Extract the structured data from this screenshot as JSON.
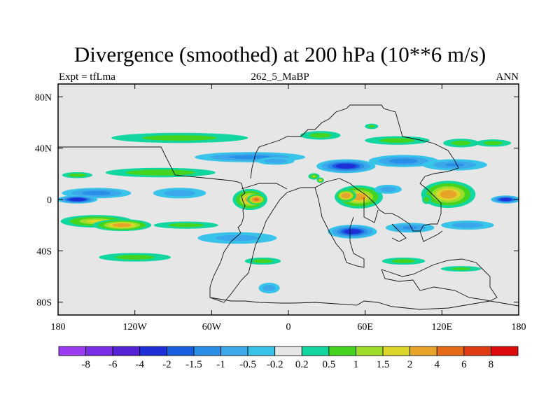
{
  "chart_data": {
    "type": "heatmap",
    "title": "Divergence (smoothed) at 200 hPa (10**6 m/s)",
    "left_label": "Expt = tfLma",
    "center_label": "262_5_MaBP",
    "right_label": "ANN",
    "xlabel": "",
    "ylabel": "",
    "xlim": [
      -180,
      180
    ],
    "ylim": [
      -90,
      90
    ],
    "x_ticks": [
      {
        "value": -180,
        "label": "180"
      },
      {
        "value": -120,
        "label": "120W"
      },
      {
        "value": -60,
        "label": "60W"
      },
      {
        "value": 0,
        "label": "0"
      },
      {
        "value": 60,
        "label": "60E"
      },
      {
        "value": 120,
        "label": "120E"
      },
      {
        "value": 180,
        "label": "180"
      }
    ],
    "y_ticks": [
      {
        "value": 80,
        "label": "80N"
      },
      {
        "value": 40,
        "label": "40N"
      },
      {
        "value": 0,
        "label": "0"
      },
      {
        "value": -40,
        "label": "40S"
      },
      {
        "value": -80,
        "label": "80S"
      }
    ],
    "colorbar": {
      "levels": [
        "-8",
        "-6",
        "-4",
        "-2",
        "-1.5",
        "-1",
        "-0.5",
        "-0.2",
        "0.2",
        "0.5",
        "1",
        "1.5",
        "2",
        "4",
        "6",
        "8"
      ],
      "level_values": [
        -8,
        -6,
        -4,
        -2,
        -1.5,
        -1,
        -0.5,
        -0.2,
        0.2,
        0.5,
        1,
        1.5,
        2,
        4,
        6,
        8
      ],
      "colors": [
        "#9b3cf0",
        "#7a2ee6",
        "#5522d6",
        "#1f2fd8",
        "#1a5fe0",
        "#2a8de6",
        "#3aa8ea",
        "#38c4e8",
        "#e6e6e6",
        "#11d6a0",
        "#44d420",
        "#9fdc2a",
        "#dcd62a",
        "#e8a42a",
        "#e46a18",
        "#e03c14",
        "#dc0c0c"
      ]
    },
    "background_color": "#e6e6e6",
    "blobs": [
      {
        "lon": -85,
        "lat": 48,
        "rlon": 95,
        "rlat": 7,
        "value": 0.7
      },
      {
        "lon": 25,
        "lat": 50,
        "rlon": 28,
        "rlat": 6,
        "value": 0.7
      },
      {
        "lon": 85,
        "lat": 46,
        "rlon": 45,
        "rlat": 6,
        "value": 0.7
      },
      {
        "lon": 160,
        "lat": 44,
        "rlon": 25,
        "rlat": 5,
        "value": 0.7
      },
      {
        "lon": 135,
        "lat": 44,
        "rlon": 25,
        "rlat": 6,
        "value": 0.7
      },
      {
        "lon": 65,
        "lat": 57,
        "rlon": 10,
        "rlat": 4,
        "value": 0.6
      },
      {
        "lon": -30,
        "lat": 33,
        "rlon": 65,
        "rlat": 6,
        "value": -1.2
      },
      {
        "lon": -10,
        "lat": 30,
        "rlon": 25,
        "rlat": 5,
        "value": -0.8
      },
      {
        "lon": 45,
        "lat": 26,
        "rlon": 30,
        "rlat": 7,
        "value": -2.5
      },
      {
        "lon": 90,
        "lat": 30,
        "rlon": 40,
        "rlat": 7,
        "value": -1.3
      },
      {
        "lon": 130,
        "lat": 27,
        "rlon": 40,
        "rlat": 7,
        "value": -1.0
      },
      {
        "lon": 20,
        "lat": 18,
        "rlon": 7,
        "rlat": 4,
        "value": 1.0
      },
      {
        "lon": 25,
        "lat": 15,
        "rlon": 4,
        "rlat": 3,
        "value": 1.6
      },
      {
        "lon": -100,
        "lat": 21,
        "rlon": 70,
        "rlat": 6,
        "value": 0.9
      },
      {
        "lon": -165,
        "lat": 19,
        "rlon": 20,
        "rlat": 4,
        "value": 0.8
      },
      {
        "lon": -150,
        "lat": 5,
        "rlon": 40,
        "rlat": 6,
        "value": -1.3
      },
      {
        "lon": -165,
        "lat": 0,
        "rlon": 20,
        "rlat": 4,
        "value": -3
      },
      {
        "lon": -85,
        "lat": 5,
        "rlon": 35,
        "rlat": 7,
        "value": -0.8
      },
      {
        "lon": -30,
        "lat": 0,
        "rlon": 18,
        "rlat": 11,
        "value": 2.2
      },
      {
        "lon": -25,
        "lat": 0,
        "rlon": 9,
        "rlat": 5,
        "value": 4.3
      },
      {
        "lon": 55,
        "lat": 2,
        "rlon": 25,
        "rlat": 12,
        "value": 2.2
      },
      {
        "lon": 45,
        "lat": 3,
        "rlon": 10,
        "rlat": 6,
        "value": 3.5
      },
      {
        "lon": 78,
        "lat": 8,
        "rlon": 18,
        "rlat": 6,
        "value": -0.8
      },
      {
        "lon": 125,
        "lat": 4,
        "rlon": 28,
        "rlat": 14,
        "value": 2.3
      },
      {
        "lon": 108,
        "lat": 0,
        "rlon": 6,
        "rlat": 6,
        "value": 0.8
      },
      {
        "lon": 170,
        "lat": 0,
        "rlon": 15,
        "rlat": 4,
        "value": -2.8
      },
      {
        "lon": -150,
        "lat": -17,
        "rlon": 40,
        "rlat": 7,
        "value": 1.5
      },
      {
        "lon": -130,
        "lat": -20,
        "rlon": 30,
        "rlat": 6,
        "value": 2.4
      },
      {
        "lon": -80,
        "lat": -20,
        "rlon": 45,
        "rlat": 5,
        "value": 0.7
      },
      {
        "lon": -40,
        "lat": -30,
        "rlon": 55,
        "rlat": 8,
        "value": -0.7
      },
      {
        "lon": 50,
        "lat": -25,
        "rlon": 25,
        "rlat": 7,
        "value": -2.5
      },
      {
        "lon": 95,
        "lat": -22,
        "rlon": 30,
        "rlat": 6,
        "value": -1.0
      },
      {
        "lon": 140,
        "lat": -20,
        "rlon": 35,
        "rlat": 6,
        "value": -0.8
      },
      {
        "lon": -120,
        "lat": -45,
        "rlon": 50,
        "rlat": 6,
        "value": 0.7
      },
      {
        "lon": -20,
        "lat": -48,
        "rlon": 25,
        "rlat": 5,
        "value": 0.7
      },
      {
        "lon": 90,
        "lat": -48,
        "rlon": 30,
        "rlat": 5,
        "value": 0.7
      },
      {
        "lon": 135,
        "lat": -54,
        "rlon": 30,
        "rlat": 4,
        "value": 0.6
      },
      {
        "lon": -15,
        "lat": -69,
        "rlon": 14,
        "rlat": 7,
        "value": -0.8
      }
    ]
  }
}
